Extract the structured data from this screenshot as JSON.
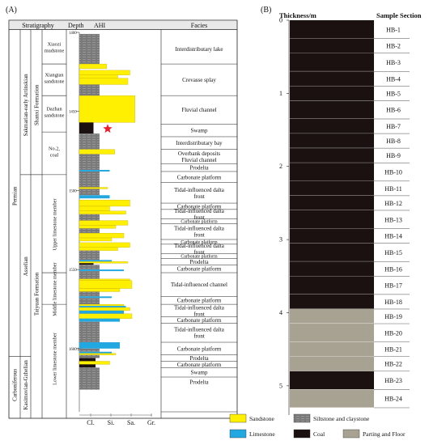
{
  "panel_a": {
    "label": "(A)",
    "header": {
      "stratigraphy": "Stratigraphy",
      "depth": "Depth",
      "ahi": "AHI",
      "facies": "Facies"
    },
    "columns": {
      "system": [
        {
          "text": "Carboniferous",
          "top": 1605,
          "bottom": 1640
        },
        {
          "text": "Permian",
          "top": 1401,
          "bottom": 1605
        }
      ],
      "stage": [
        {
          "text": "Kasimovian-Gzhelian",
          "top": 1605,
          "bottom": 1640
        },
        {
          "text": "Asselian",
          "top": 1490,
          "bottom": 1605
        },
        {
          "text": "Sakmarian-early Artinskian",
          "top": 1401,
          "bottom": 1490
        }
      ],
      "formation": [
        {
          "text": "Taiyuan Formation",
          "top": 1490,
          "bottom": 1640
        },
        {
          "text": "Shanxi Formation",
          "top": 1401,
          "bottom": 1490
        }
      ],
      "member": [
        {
          "text": "Lower limestone member",
          "top": 1572,
          "bottom": 1640
        },
        {
          "text": "Middle limestone member",
          "top": 1552,
          "bottom": 1572
        },
        {
          "text": "Upper limestone member",
          "top": 1490,
          "bottom": 1552
        },
        {
          "text": "No.2, coal",
          "top": 1463,
          "bottom": 1490
        },
        {
          "text": "Dazhan sandstone",
          "top": 1440,
          "bottom": 1463
        },
        {
          "text": "Xiangtan sandstone",
          "top": 1420,
          "bottom": 1440
        },
        {
          "text": "Xiaozi mudstone",
          "top": 1401,
          "bottom": 1420
        }
      ]
    },
    "depth_ticks": [
      "1400",
      "1450",
      "1500",
      "1550",
      "1600 (m)"
    ],
    "depth_tick_values": [
      1400,
      1450,
      1500,
      1550,
      1600
    ],
    "depth_range": [
      1400,
      1640
    ],
    "grain_scale": [
      "Cl.",
      "Si.",
      "Sa.",
      "Gr."
    ],
    "facies": [
      {
        "text": "Interdistributary lake",
        "top": 1401,
        "bottom": 1420
      },
      {
        "text": "Crevasse splay",
        "top": 1420,
        "bottom": 1440
      },
      {
        "text": "Fluvial channel",
        "top": 1440,
        "bottom": 1458
      },
      {
        "text": "Swamp",
        "top": 1458,
        "bottom": 1466
      },
      {
        "text": "Interdistributary bay",
        "top": 1466,
        "bottom": 1474
      },
      {
        "text": "Overbank deposits Fluvial channel",
        "top": 1474,
        "bottom": 1483
      },
      {
        "text": "Prodelta",
        "top": 1483,
        "bottom": 1488
      },
      {
        "text": "Carbonate platform",
        "top": 1488,
        "bottom": 1495
      },
      {
        "text": "Tidal-influenced dalta front",
        "top": 1495,
        "bottom": 1508
      },
      {
        "text": "Carbonate platform",
        "top": 1508,
        "bottom": 1512
      },
      {
        "text": "Tidal-influenced dalta front",
        "top": 1512,
        "bottom": 1518
      },
      {
        "text": "Carbonate platform",
        "top": 1518,
        "bottom": 1521
      },
      {
        "text": "Tidal-influenced dalta front",
        "top": 1521,
        "bottom": 1531
      },
      {
        "text": "Carbonate platform",
        "top": 1531,
        "bottom": 1534
      },
      {
        "text": "Tidal-influenced dalta front",
        "top": 1534,
        "bottom": 1540
      },
      {
        "text": "Carbonate platform",
        "top": 1540,
        "bottom": 1543
      },
      {
        "text": "Prodelta",
        "top": 1543,
        "bottom": 1547
      },
      {
        "text": "Carbonate platform",
        "top": 1547,
        "bottom": 1552
      },
      {
        "text": "Tidal-influenced channel",
        "top": 1552,
        "bottom": 1567
      },
      {
        "text": "Carbonate platform",
        "top": 1567,
        "bottom": 1572
      },
      {
        "text": "Tidal-influenced dalta front",
        "top": 1572,
        "bottom": 1580
      },
      {
        "text": "Carbonate platform",
        "top": 1580,
        "bottom": 1584
      },
      {
        "text": "Tidal-influenced dalta front",
        "top": 1584,
        "bottom": 1596
      },
      {
        "text": "Carbonate platform",
        "top": 1596,
        "bottom": 1604
      },
      {
        "text": "Prodelta",
        "top": 1604,
        "bottom": 1608
      },
      {
        "text": "Carbonate platform",
        "top": 1608,
        "bottom": 1612
      },
      {
        "text": "Swamp",
        "top": 1612,
        "bottom": 1618
      },
      {
        "text": "Prodelta",
        "top": 1618,
        "bottom": 1624
      }
    ],
    "lithology": [
      {
        "top": 1401,
        "bottom": 1420,
        "type": "siltstone",
        "grain": 1
      },
      {
        "top": 1420,
        "bottom": 1423,
        "type": "sandstone",
        "grain": 1.35
      },
      {
        "top": 1424,
        "bottom": 1427,
        "type": "sandstone",
        "grain": 2.5
      },
      {
        "top": 1427,
        "bottom": 1429,
        "type": "sandstone",
        "grain": 1.9
      },
      {
        "top": 1429,
        "bottom": 1433,
        "type": "sandstone",
        "grain": 2.4
      },
      {
        "top": 1433,
        "bottom": 1440,
        "type": "siltstone",
        "grain": 1
      },
      {
        "top": 1440,
        "bottom": 1457,
        "type": "sandstone",
        "grain": 2.75
      },
      {
        "top": 1457,
        "bottom": 1464,
        "type": "coal",
        "grain": 0.7
      },
      {
        "top": 1464,
        "bottom": 1474,
        "type": "siltstone",
        "grain": 1
      },
      {
        "top": 1474,
        "bottom": 1477,
        "type": "sandstone",
        "grain": 1.75
      },
      {
        "top": 1477,
        "bottom": 1487,
        "type": "siltstone",
        "grain": 1
      },
      {
        "top": 1487,
        "bottom": 1488,
        "type": "limestone",
        "grain": 1.5
      },
      {
        "top": 1488,
        "bottom": 1498,
        "type": "siltstone",
        "grain": 1
      },
      {
        "top": 1498,
        "bottom": 1499,
        "type": "sandstone",
        "grain": 1.4
      },
      {
        "top": 1499,
        "bottom": 1503,
        "type": "siltstone",
        "grain": 1
      },
      {
        "top": 1503,
        "bottom": 1505,
        "type": "limestone",
        "grain": 1.5
      },
      {
        "top": 1506,
        "bottom": 1510,
        "type": "sandstone",
        "grain": 2.5
      },
      {
        "top": 1510,
        "bottom": 1513,
        "type": "sandstone",
        "grain": 1.5
      },
      {
        "top": 1513,
        "bottom": 1515,
        "type": "sandstone",
        "grain": 2.3
      },
      {
        "top": 1515,
        "bottom": 1519,
        "type": "siltstone",
        "grain": 1
      },
      {
        "top": 1519,
        "bottom": 1522,
        "type": "sandstone",
        "grain": 2.4
      },
      {
        "top": 1522,
        "bottom": 1524,
        "type": "sandstone",
        "grain": 1.8
      },
      {
        "top": 1524,
        "bottom": 1527,
        "type": "siltstone",
        "grain": 1
      },
      {
        "top": 1527,
        "bottom": 1530,
        "type": "sandstone",
        "grain": 2.2
      },
      {
        "top": 1530,
        "bottom": 1532,
        "type": "sandstone",
        "grain": 1.6
      },
      {
        "top": 1533,
        "bottom": 1536,
        "type": "sandstone",
        "grain": 2.5
      },
      {
        "top": 1536,
        "bottom": 1538,
        "type": "sandstone",
        "grain": 1.9
      },
      {
        "top": 1538,
        "bottom": 1544,
        "type": "siltstone",
        "grain": 1
      },
      {
        "top": 1544,
        "bottom": 1545,
        "type": "limestone",
        "grain": 1.6
      },
      {
        "top": 1545,
        "bottom": 1546,
        "type": "sandstone",
        "grain": 2.4
      },
      {
        "top": 1546,
        "bottom": 1547,
        "type": "coal",
        "grain": 0.7
      },
      {
        "top": 1547,
        "bottom": 1550,
        "type": "siltstone",
        "grain": 1
      },
      {
        "top": 1550,
        "bottom": 1551,
        "type": "limestone",
        "grain": 2.2
      },
      {
        "top": 1551,
        "bottom": 1556,
        "type": "siltstone",
        "grain": 1
      },
      {
        "top": 1556,
        "bottom": 1557,
        "type": "sandstone",
        "grain": 2.5
      },
      {
        "top": 1557,
        "bottom": 1562,
        "type": "sandstone",
        "grain": 2.6
      },
      {
        "top": 1562,
        "bottom": 1564,
        "type": "sandstone",
        "grain": 2.0
      },
      {
        "top": 1564,
        "bottom": 1567,
        "type": "siltstone",
        "grain": 1
      },
      {
        "top": 1567,
        "bottom": 1568,
        "type": "limestone",
        "grain": 1.6
      },
      {
        "top": 1568,
        "bottom": 1572,
        "type": "siltstone",
        "grain": 1
      },
      {
        "top": 1572,
        "bottom": 1573,
        "type": "sandstone",
        "grain": 2.2
      },
      {
        "top": 1573,
        "bottom": 1574,
        "type": "limestone",
        "grain": 2.3
      },
      {
        "top": 1574,
        "bottom": 1576,
        "type": "sandstone",
        "grain": 2.5
      },
      {
        "top": 1576,
        "bottom": 1578,
        "type": "limestone",
        "grain": 2.2
      },
      {
        "top": 1578,
        "bottom": 1581,
        "type": "sandstone",
        "grain": 2.6
      },
      {
        "top": 1581,
        "bottom": 1583,
        "type": "limestone",
        "grain": 2.0
      },
      {
        "top": 1583,
        "bottom": 1596,
        "type": "siltstone",
        "grain": 1
      },
      {
        "top": 1596,
        "bottom": 1600,
        "type": "limestone",
        "grain": 2.0
      },
      {
        "top": 1600,
        "bottom": 1602,
        "type": "siltstone",
        "grain": 1
      },
      {
        "top": 1602,
        "bottom": 1603,
        "type": "limestone",
        "grain": 1.6
      },
      {
        "top": 1603,
        "bottom": 1604,
        "type": "sandstone",
        "grain": 1.8
      },
      {
        "top": 1604,
        "bottom": 1606,
        "type": "siltstone",
        "grain": 1
      },
      {
        "top": 1606,
        "bottom": 1608,
        "type": "coal",
        "grain": 0.8
      },
      {
        "top": 1608,
        "bottom": 1610,
        "type": "sandstone",
        "grain": 1.5
      },
      {
        "top": 1610,
        "bottom": 1612,
        "type": "coal",
        "grain": 0.8
      },
      {
        "top": 1612,
        "bottom": 1626,
        "type": "siltstone",
        "grain": 1
      }
    ],
    "star_depth": 1461
  },
  "panel_b": {
    "label": "(B)",
    "thickness_label": "Thickness/m",
    "section_label": "Sample Section",
    "thickness_ticks": [
      "0",
      "1",
      "2",
      "3",
      "4",
      "5"
    ],
    "max_thickness": 5.4,
    "samples": [
      {
        "name": "HB-1",
        "type": "coal",
        "top": 0.0,
        "bottom": 0.25
      },
      {
        "name": "HB-2",
        "type": "coal",
        "top": 0.25,
        "bottom": 0.45
      },
      {
        "name": "HB-3",
        "type": "coal",
        "top": 0.45,
        "bottom": 0.7
      },
      {
        "name": "HB-4",
        "type": "coal",
        "top": 0.7,
        "bottom": 0.9
      },
      {
        "name": "HB-5",
        "type": "coal",
        "top": 0.9,
        "bottom": 1.1
      },
      {
        "name": "HB-6",
        "type": "coal",
        "top": 1.1,
        "bottom": 1.35
      },
      {
        "name": "HB-7",
        "type": "coal",
        "top": 1.35,
        "bottom": 1.55
      },
      {
        "name": "HB-8",
        "type": "coal",
        "top": 1.55,
        "bottom": 1.75
      },
      {
        "name": "HB-9",
        "type": "coal",
        "top": 1.75,
        "bottom": 1.95
      },
      {
        "name": "HB-10",
        "type": "coal",
        "top": 1.95,
        "bottom": 2.2
      },
      {
        "name": "HB-11",
        "type": "coal",
        "top": 2.2,
        "bottom": 2.4
      },
      {
        "name": "HB-12",
        "type": "coal",
        "top": 2.4,
        "bottom": 2.6
      },
      {
        "name": "HB-13",
        "type": "coal",
        "top": 2.6,
        "bottom": 2.85
      },
      {
        "name": "HB-14",
        "type": "coal",
        "top": 2.85,
        "bottom": 3.05
      },
      {
        "name": "HB-15",
        "type": "coal",
        "top": 3.05,
        "bottom": 3.3
      },
      {
        "name": "HB-16",
        "type": "coal",
        "top": 3.3,
        "bottom": 3.5
      },
      {
        "name": "HB-17",
        "type": "coal",
        "top": 3.5,
        "bottom": 3.75
      },
      {
        "name": "HB-18",
        "type": "coal",
        "top": 3.75,
        "bottom": 3.95
      },
      {
        "name": "HB-19",
        "type": "parting",
        "top": 3.95,
        "bottom": 4.15
      },
      {
        "name": "HB-20",
        "type": "parting",
        "top": 4.15,
        "bottom": 4.4
      },
      {
        "name": "HB-21",
        "type": "parting",
        "top": 4.4,
        "bottom": 4.6
      },
      {
        "name": "HB-22",
        "type": "parting",
        "top": 4.6,
        "bottom": 4.8
      },
      {
        "name": "HB-23",
        "type": "coal",
        "top": 4.8,
        "bottom": 5.05
      },
      {
        "name": "HB-24",
        "type": "parting",
        "top": 5.05,
        "bottom": 5.3
      }
    ]
  },
  "legend": [
    {
      "key": "sandstone",
      "label": "Sandstone"
    },
    {
      "key": "siltstone",
      "label": "Siltstone and claystone"
    },
    {
      "key": "limestone",
      "label": "Limestone"
    },
    {
      "key": "coal",
      "label": "Coal"
    },
    {
      "key": "parting",
      "label": "Parting and Floor"
    }
  ],
  "colors": {
    "sandstone": "#ffef00",
    "siltstone": "#7a7a7a",
    "limestone": "#22a8e0",
    "coal": "#1a1110",
    "parting": "#a8a292",
    "star": "#e8202a",
    "header_bg": "#e9e9e9"
  }
}
